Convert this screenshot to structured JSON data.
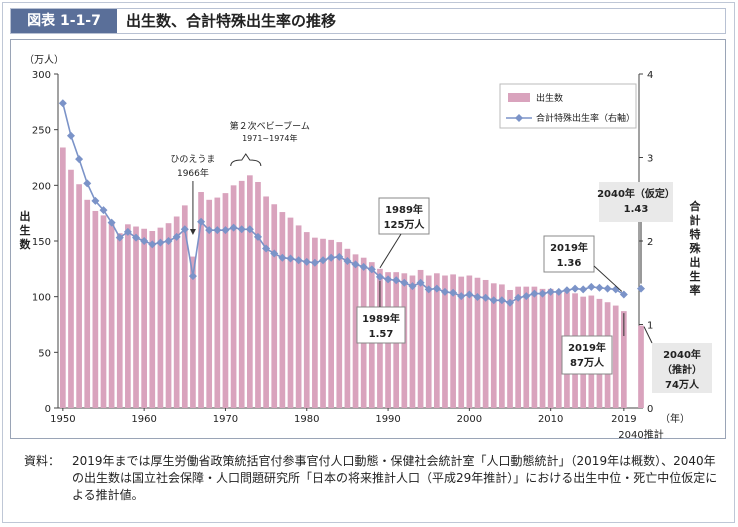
{
  "figure_label": "図表 1-1-7",
  "title": "出生数、合計特殊出生率の推移",
  "note_label": "資料：",
  "note_text": "2019年までは厚生労働省政策統括官付参事官付人口動態・保健社会統計室「人口動態統計」（2019年は概数）、2040年の出生数は国立社会保障・人口問題研究所「日本の将来推計人口（平成29年推計）」における出生中位・死亡中位仮定による推計値。",
  "colors": {
    "bar": "#d9a3bd",
    "line": "#7b93c8",
    "marker": "#7b93c8",
    "header_bg": "#5a6f99",
    "frame": "#9aa4b6",
    "callout_bg": "#e9e9e9"
  },
  "chart_data": {
    "type": "bar+line",
    "left_axis": {
      "unit": "（万人）",
      "label": "出生数",
      "ylim": [
        0,
        300
      ],
      "ticks": [
        "0",
        "50",
        "100",
        "150",
        "200",
        "250",
        "300"
      ]
    },
    "right_axis": {
      "label": "合計特殊出生率",
      "ylim": [
        0,
        4
      ],
      "ticks": [
        "0",
        "1",
        "2",
        "3",
        "4"
      ]
    },
    "x_axis": {
      "unit": "（年）",
      "ticks": [
        "1950",
        "1960",
        "1970",
        "1980",
        "1990",
        "2000",
        "2010",
        "2019"
      ],
      "extra_tick": "2040推計"
    },
    "legend": {
      "position": "top-right",
      "items": [
        "出生数",
        "合計特殊出生率（右軸）"
      ]
    },
    "years": [
      1950,
      1951,
      1952,
      1953,
      1954,
      1955,
      1956,
      1957,
      1958,
      1959,
      1960,
      1961,
      1962,
      1963,
      1964,
      1965,
      1966,
      1967,
      1968,
      1969,
      1970,
      1971,
      1972,
      1973,
      1974,
      1975,
      1976,
      1977,
      1978,
      1979,
      1980,
      1981,
      1982,
      1983,
      1984,
      1985,
      1986,
      1987,
      1988,
      1989,
      1990,
      1991,
      1992,
      1993,
      1994,
      1995,
      1996,
      1997,
      1998,
      1999,
      2000,
      2001,
      2002,
      2003,
      2004,
      2005,
      2006,
      2007,
      2008,
      2009,
      2010,
      2011,
      2012,
      2013,
      2014,
      2015,
      2016,
      2017,
      2018,
      2019
    ],
    "series": [
      {
        "name": "出生数",
        "type": "bar",
        "values": [
          234,
          214,
          201,
          187,
          177,
          173,
          167,
          157,
          165,
          163,
          161,
          159,
          162,
          166,
          172,
          182,
          136,
          194,
          187,
          189,
          193,
          200,
          204,
          209,
          203,
          190,
          183,
          176,
          171,
          164,
          158,
          153,
          152,
          151,
          149,
          143,
          138,
          135,
          131,
          125,
          122,
          122,
          121,
          119,
          124,
          119,
          121,
          119,
          120,
          118,
          119,
          117,
          115,
          112,
          111,
          106,
          109,
          109,
          109,
          107,
          107,
          105,
          104,
          103,
          100,
          101,
          98,
          95,
          92,
          87
        ]
      },
      {
        "name": "合計特殊出生率（右軸）",
        "type": "line",
        "values": [
          3.65,
          3.26,
          2.98,
          2.69,
          2.48,
          2.37,
          2.22,
          2.04,
          2.11,
          2.04,
          2.0,
          1.96,
          1.98,
          2.0,
          2.05,
          2.14,
          1.58,
          2.23,
          2.13,
          2.13,
          2.13,
          2.16,
          2.14,
          2.14,
          2.05,
          1.91,
          1.85,
          1.8,
          1.79,
          1.77,
          1.75,
          1.74,
          1.77,
          1.8,
          1.81,
          1.76,
          1.72,
          1.69,
          1.66,
          1.57,
          1.54,
          1.53,
          1.5,
          1.46,
          1.5,
          1.42,
          1.43,
          1.39,
          1.38,
          1.34,
          1.36,
          1.33,
          1.32,
          1.29,
          1.29,
          1.26,
          1.32,
          1.34,
          1.37,
          1.37,
          1.39,
          1.39,
          1.41,
          1.43,
          1.42,
          1.45,
          1.44,
          1.43,
          1.42,
          1.36
        ]
      }
    ],
    "projection": {
      "year": "2040",
      "births": 74,
      "tfr": 1.43
    },
    "annotations": {
      "hinoeuma": [
        "ひのえうま",
        "1966年"
      ],
      "babyboom": [
        "第２次ベビーブーム",
        "1971~1974年"
      ],
      "c1989_births": [
        "1989年",
        "125万人"
      ],
      "c1989_tfr": [
        "1989年",
        "1.57"
      ],
      "c2019_tfr": [
        "2019年",
        "1.36"
      ],
      "c2019_births": [
        "2019年",
        "87万人"
      ],
      "c2040_tfr": [
        "2040年（仮定）",
        "1.43"
      ],
      "c2040_births": [
        "2040年",
        "（推計）",
        "74万人"
      ]
    }
  }
}
